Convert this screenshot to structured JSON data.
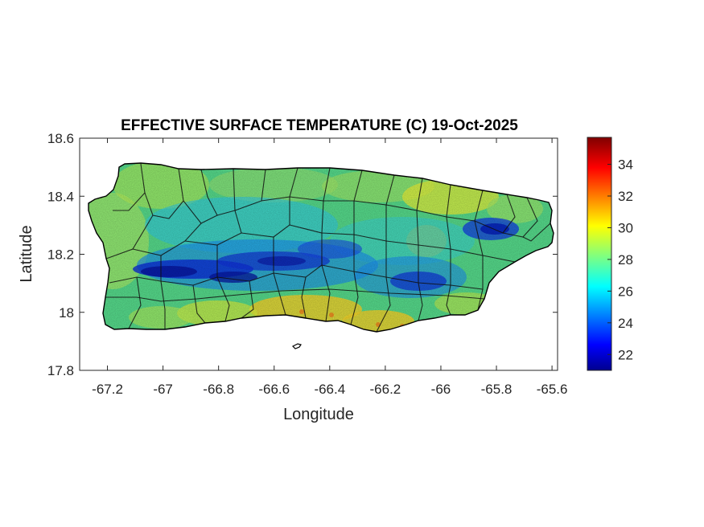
{
  "chart_data": {
    "type": "heatmap",
    "title": "EFFECTIVE SURFACE TEMPERATURE (C) 19-Oct-2025",
    "xlabel": "Longitude",
    "ylabel": "Latitude",
    "xlim": [
      -67.3,
      -65.58
    ],
    "ylim": [
      17.8,
      18.6
    ],
    "x_ticks": [
      -67.2,
      -67,
      -66.8,
      -66.6,
      -66.4,
      -66.2,
      -66,
      -65.8,
      -65.6
    ],
    "x_tick_labels": [
      "-67.2",
      "-67",
      "-66.8",
      "-66.6",
      "-66.4",
      "-66.2",
      "-66",
      "-65.8",
      "-65.6"
    ],
    "y_ticks": [
      17.8,
      18,
      18.2,
      18.4,
      18.6
    ],
    "y_tick_labels": [
      "17.8",
      "18",
      "18.2",
      "18.4",
      "18.6"
    ],
    "colorbar": {
      "colormap": "jet",
      "range": [
        21,
        35.7
      ],
      "ticks": [
        22,
        24,
        26,
        28,
        30,
        32,
        34
      ],
      "tick_labels": [
        "22",
        "24",
        "26",
        "28",
        "30",
        "32",
        "34"
      ]
    },
    "grid": false,
    "features": {
      "central_mountain_range_min_temp": 21.5,
      "coastal_typical_temp": 28,
      "south_coast_max_temp": 31.5,
      "coastline_color": "#000000",
      "municipal_boundaries": true
    }
  }
}
